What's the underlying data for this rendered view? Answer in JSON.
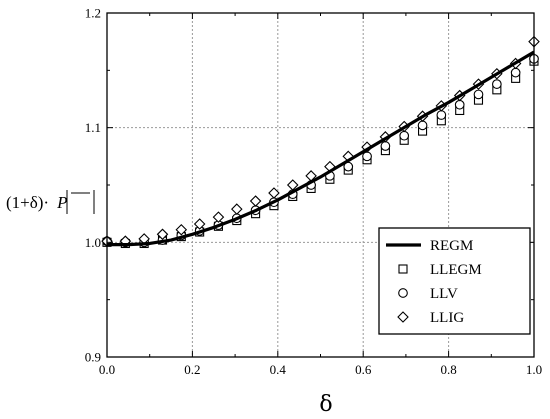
{
  "chart_data": {
    "type": "line",
    "title": "",
    "xlabel": "δ",
    "ylabel_parts": {
      "prefix": "(1+δ)·",
      "symbol": "P"
    },
    "xlim": [
      0.0,
      1.0
    ],
    "ylim": [
      0.9,
      1.2
    ],
    "xticks": [
      "0.0",
      "0.2",
      "0.4",
      "0.6",
      "0.8",
      "1.0"
    ],
    "yticks": [
      "0.9",
      "1.0",
      "1.1",
      "1.2"
    ],
    "grid": true,
    "legend_position": "bottom-right",
    "series": [
      {
        "name": "REGM",
        "marker": "line",
        "x": [
          0.0,
          0.05,
          0.1,
          0.15,
          0.2,
          0.25,
          0.3,
          0.35,
          0.4,
          0.45,
          0.5,
          0.55,
          0.6,
          0.65,
          0.7,
          0.75,
          0.8,
          0.85,
          0.9,
          0.95,
          1.0
        ],
        "y": [
          0.998,
          0.998,
          0.999,
          1.002,
          1.007,
          1.013,
          1.02,
          1.028,
          1.037,
          1.047,
          1.057,
          1.068,
          1.079,
          1.09,
          1.101,
          1.112,
          1.122,
          1.133,
          1.144,
          1.155,
          1.166
        ]
      },
      {
        "name": "LLEGM",
        "marker": "square",
        "x": [
          0.0,
          0.043,
          0.087,
          0.13,
          0.174,
          0.217,
          0.261,
          0.304,
          0.348,
          0.391,
          0.435,
          0.478,
          0.522,
          0.565,
          0.609,
          0.652,
          0.696,
          0.739,
          0.783,
          0.826,
          0.87,
          0.913,
          0.957,
          1.0
        ],
        "y": [
          1.0,
          0.999,
          0.999,
          1.002,
          1.005,
          1.009,
          1.014,
          1.019,
          1.025,
          1.032,
          1.04,
          1.047,
          1.055,
          1.063,
          1.072,
          1.08,
          1.089,
          1.097,
          1.106,
          1.115,
          1.124,
          1.133,
          1.143,
          1.158
        ]
      },
      {
        "name": "LLV",
        "marker": "circle",
        "x": [
          0.0,
          0.043,
          0.087,
          0.13,
          0.174,
          0.217,
          0.261,
          0.304,
          0.348,
          0.391,
          0.435,
          0.478,
          0.522,
          0.565,
          0.609,
          0.652,
          0.696,
          0.739,
          0.783,
          0.826,
          0.87,
          0.913,
          0.957,
          1.0
        ],
        "y": [
          1.001,
          1.0,
          1.0,
          1.002,
          1.006,
          1.01,
          1.015,
          1.021,
          1.028,
          1.035,
          1.042,
          1.05,
          1.058,
          1.066,
          1.075,
          1.084,
          1.093,
          1.102,
          1.111,
          1.12,
          1.129,
          1.138,
          1.148,
          1.16
        ]
      },
      {
        "name": "LLIG",
        "marker": "diamond",
        "x": [
          0.0,
          0.043,
          0.087,
          0.13,
          0.174,
          0.217,
          0.261,
          0.304,
          0.348,
          0.391,
          0.435,
          0.478,
          0.522,
          0.565,
          0.609,
          0.652,
          0.696,
          0.739,
          0.783,
          0.826,
          0.87,
          0.913,
          0.957,
          1.0
        ],
        "y": [
          1.001,
          1.001,
          1.003,
          1.007,
          1.011,
          1.016,
          1.022,
          1.029,
          1.036,
          1.043,
          1.05,
          1.058,
          1.066,
          1.075,
          1.083,
          1.092,
          1.101,
          1.11,
          1.119,
          1.128,
          1.138,
          1.147,
          1.156,
          1.175
        ]
      }
    ]
  }
}
